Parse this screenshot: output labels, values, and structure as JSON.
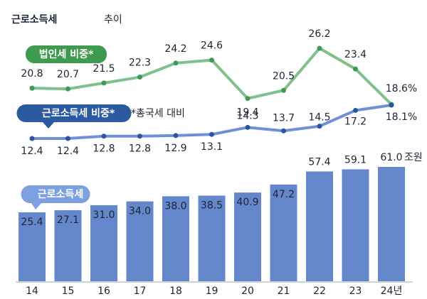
{
  "chart_data": {
    "type": "bar-line",
    "title": "근로소득세",
    "title_suffix": "추이",
    "note": "*총국세 대비",
    "unit": "조원",
    "categories": [
      "14",
      "15",
      "16",
      "17",
      "18",
      "19",
      "20",
      "21",
      "22",
      "23",
      "24년"
    ],
    "series": [
      {
        "name": "근로소득세",
        "color": "#6487cc",
        "type": "bar",
        "values": [
          25.4,
          27.1,
          31.0,
          34.0,
          38.0,
          38.5,
          40.9,
          47.2,
          57.4,
          59.1,
          61.0
        ],
        "value_labels": [
          "25.4",
          "27.1",
          "31.0",
          "34.0",
          "38.0",
          "38.5",
          "40.9",
          "47.2",
          "57.4",
          "59.1",
          "61.0"
        ]
      },
      {
        "name": "법인세 비중*",
        "color": "#7fc08c",
        "marker_color": "#3e9a55",
        "type": "line",
        "values": [
          20.8,
          20.7,
          21.5,
          22.3,
          24.2,
          24.6,
          19.4,
          20.5,
          26.2,
          23.4,
          18.6
        ],
        "value_labels": [
          "20.8",
          "20.7",
          "21.5",
          "22.3",
          "24.2",
          "24.6",
          "19.4",
          "20.5",
          "26.2",
          "23.4",
          "18.6%"
        ]
      },
      {
        "name": "근로소득세 비중*",
        "color": "#6f90d8",
        "marker_color": "#2b55a3",
        "type": "line",
        "values": [
          12.4,
          12.4,
          12.8,
          12.8,
          12.9,
          13.1,
          14.3,
          13.7,
          14.5,
          17.2,
          18.1
        ],
        "value_labels": [
          "12.4",
          "12.4",
          "12.8",
          "12.8",
          "12.9",
          "13.1",
          "14.3",
          "13.7",
          "14.5",
          "17.2",
          "18.1%"
        ]
      }
    ]
  }
}
